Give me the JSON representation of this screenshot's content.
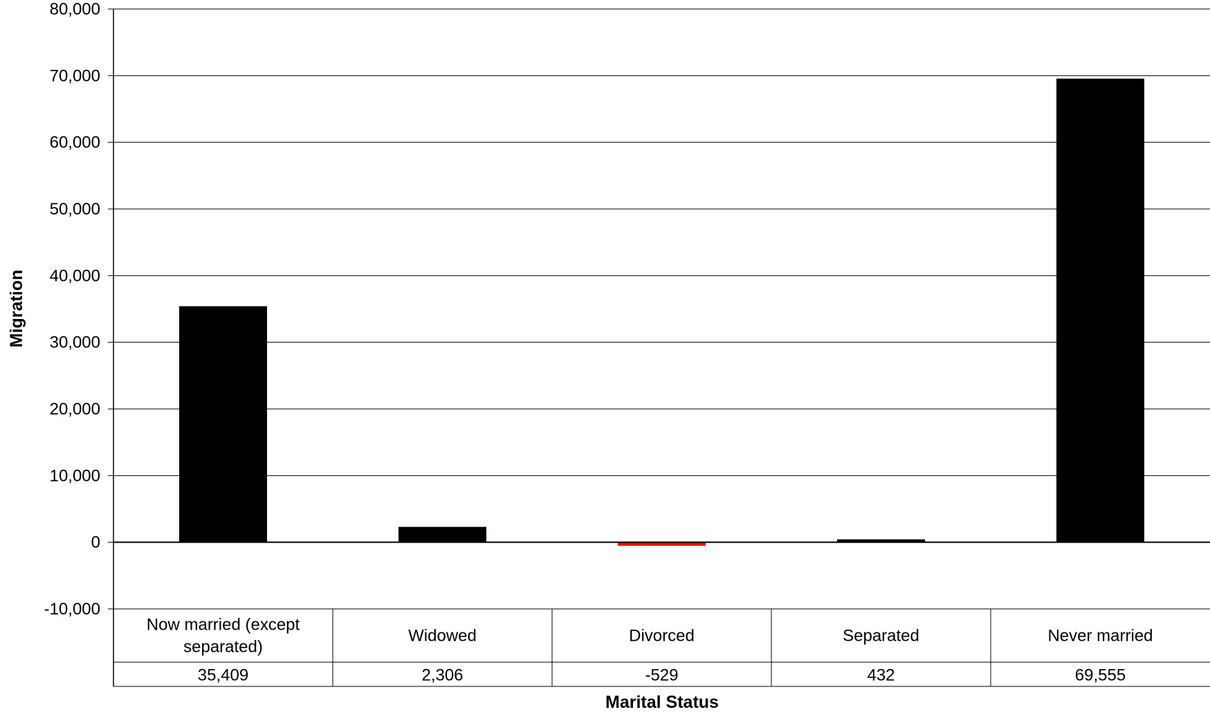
{
  "chart_data": {
    "type": "bar",
    "xlabel": "Marital Status",
    "ylabel": "Migration",
    "ylim": [
      -10000,
      80000
    ],
    "yticks": [
      80000,
      70000,
      60000,
      50000,
      40000,
      30000,
      20000,
      10000,
      0,
      -10000
    ],
    "ytick_labels": [
      "80,000",
      "70,000",
      "60,000",
      "50,000",
      "40,000",
      "30,000",
      "20,000",
      "10,000",
      "0",
      "-10,000"
    ],
    "grid": true,
    "categories": [
      "Now married (except separated)",
      "Widowed",
      "Divorced",
      "Separated",
      "Never married"
    ],
    "values": [
      35409,
      2306,
      -529,
      432,
      69555
    ],
    "value_labels": [
      "35,409",
      "2,306",
      "-529",
      "432",
      "69,555"
    ],
    "colors": {
      "positive": "#000000",
      "negative": "#ff0000",
      "grid": "#000000"
    }
  }
}
